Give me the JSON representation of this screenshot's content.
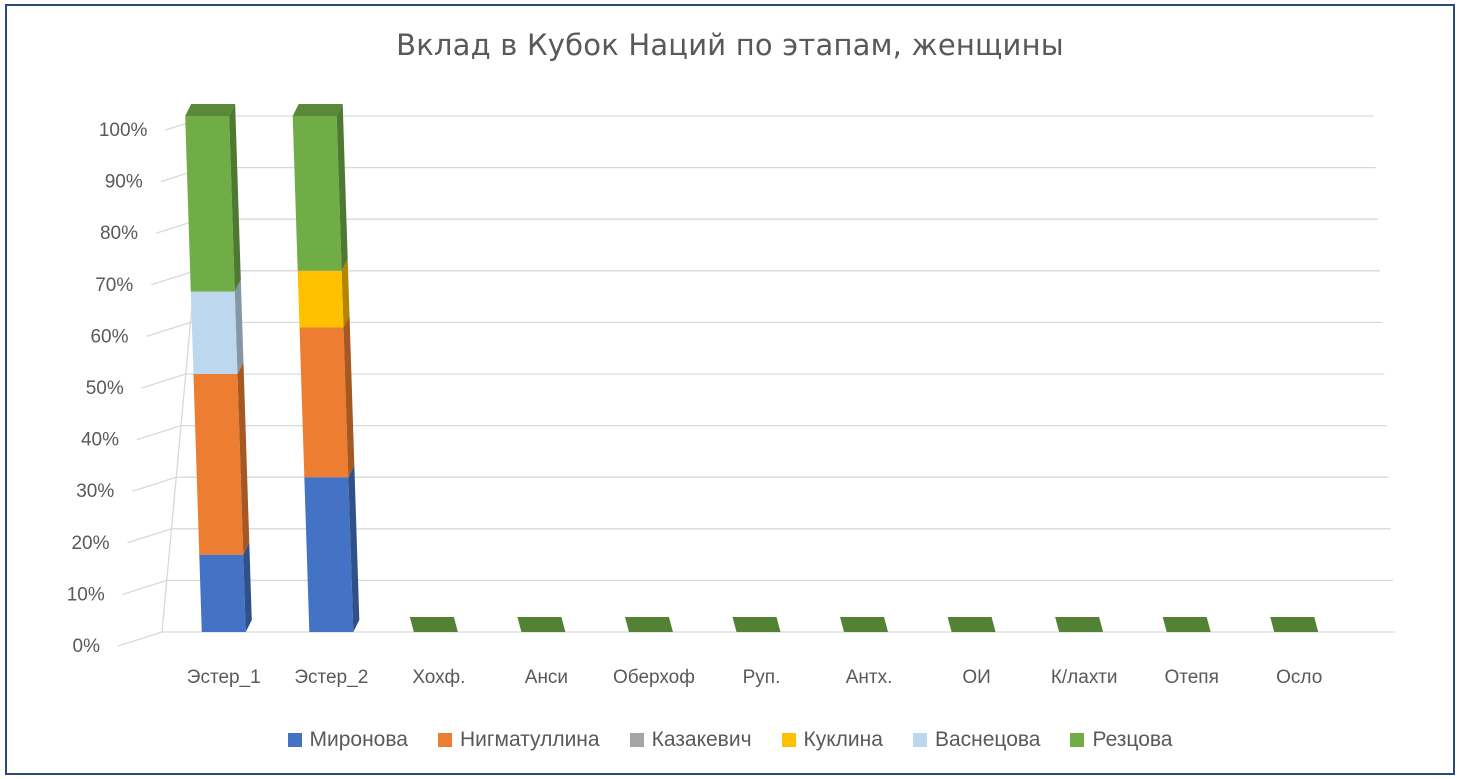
{
  "chart_data": {
    "type": "bar",
    "subtype": "stacked-percent-3d",
    "title": "Вклад в Кубок Наций по этапам, женщины",
    "xlabel": "",
    "ylabel": "",
    "ylim": [
      0,
      100
    ],
    "y_ticks": [
      "0%",
      "10%",
      "20%",
      "30%",
      "40%",
      "50%",
      "60%",
      "70%",
      "80%",
      "90%",
      "100%"
    ],
    "grid": true,
    "legend_position": "bottom",
    "categories": [
      "Эстер_1",
      "Эстер_2",
      "Хохф.",
      "Анси",
      "Оберхоф",
      "Руп.",
      "Антх.",
      "ОИ",
      "К/лахти",
      "Отепя",
      "Осло"
    ],
    "series": [
      {
        "name": "Миронова",
        "color": "#4472c4",
        "values": [
          15,
          30,
          0,
          0,
          0,
          0,
          0,
          0,
          0,
          0,
          0
        ]
      },
      {
        "name": "Нигматуллина",
        "color": "#ed7d31",
        "values": [
          35,
          29,
          0,
          0,
          0,
          0,
          0,
          0,
          0,
          0,
          0
        ]
      },
      {
        "name": "Казакевич",
        "color": "#a5a5a5",
        "values": [
          0,
          0,
          0,
          0,
          0,
          0,
          0,
          0,
          0,
          0,
          0
        ]
      },
      {
        "name": "Куклина",
        "color": "#ffc000",
        "values": [
          0,
          11,
          0,
          0,
          0,
          0,
          0,
          0,
          0,
          0,
          0
        ]
      },
      {
        "name": "Васнецова",
        "color": "#bdd7ee",
        "values": [
          16,
          0,
          0,
          0,
          0,
          0,
          0,
          0,
          0,
          0,
          0
        ]
      },
      {
        "name": "Резцова",
        "color": "#70ad47",
        "values": [
          34,
          30,
          0,
          0,
          0,
          0,
          0,
          0,
          0,
          0,
          0
        ]
      }
    ]
  }
}
